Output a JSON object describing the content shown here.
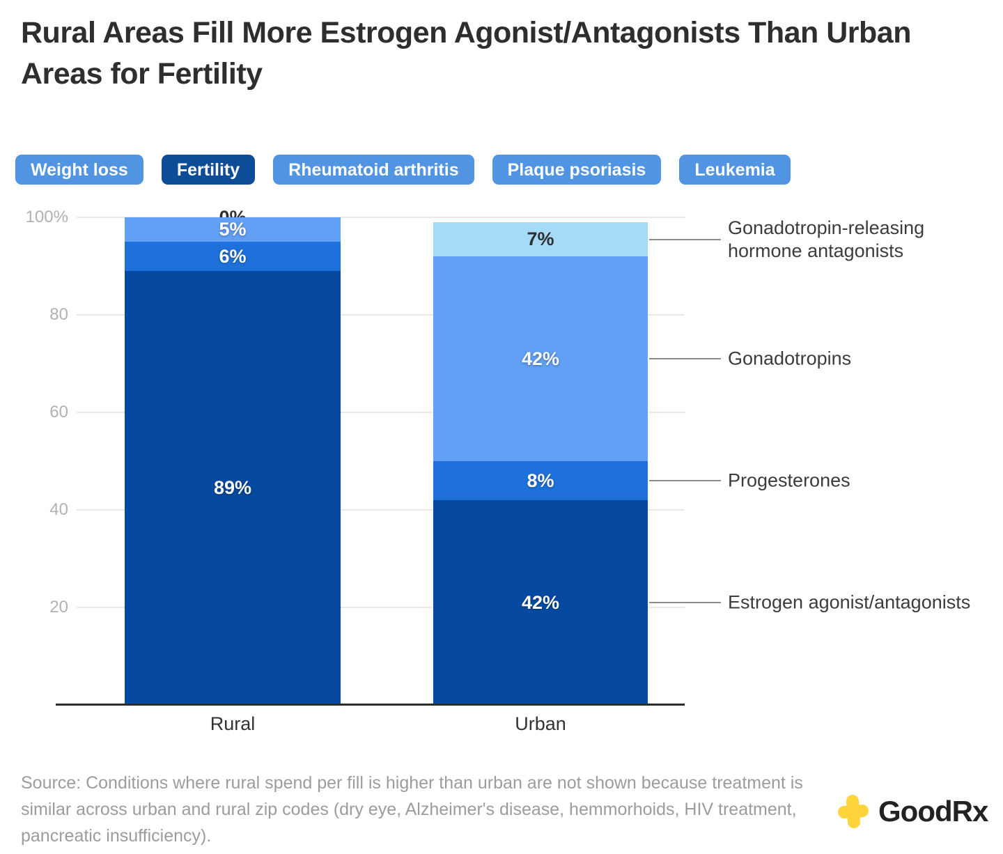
{
  "title": "Rural Areas Fill More Estrogen Agonist/Antagonists Than Urban Areas for Fertility",
  "tabs": {
    "items": [
      {
        "label": "Weight loss",
        "active": false
      },
      {
        "label": "Fertility",
        "active": true
      },
      {
        "label": "Rheumatoid arthritis",
        "active": false
      },
      {
        "label": "Plaque psoriasis",
        "active": false
      },
      {
        "label": "Leukemia",
        "active": false
      }
    ]
  },
  "chart_data": {
    "type": "bar",
    "stacked": true,
    "categories": [
      "Rural",
      "Urban"
    ],
    "series": [
      {
        "name": "Gonadotropin-releasing hormone antagonists",
        "label_lines": [
          "Gonadotropin-releasing",
          "hormone antagonists"
        ],
        "color": "#A6DBF8",
        "values": [
          0,
          7
        ],
        "label_color": "dark"
      },
      {
        "name": "Gonadotropins",
        "color": "#61A0F4",
        "values": [
          5,
          42
        ],
        "label_color": "light"
      },
      {
        "name": "Progesterones",
        "color": "#1E71DA",
        "values": [
          6,
          8
        ],
        "label_color": "light"
      },
      {
        "name": "Estrogen agonist/antagonists",
        "color": "#0649A0",
        "values": [
          89,
          42
        ],
        "label_color": "light"
      }
    ],
    "yticks": [
      {
        "label": "100%",
        "value": 100
      },
      {
        "label": "80",
        "value": 80
      },
      {
        "label": "60",
        "value": 60
      },
      {
        "label": "40",
        "value": 40
      },
      {
        "label": "20",
        "value": 20
      }
    ],
    "ylim": [
      0,
      100
    ],
    "value_suffix": "%",
    "grid": true,
    "legend_position": "right-callouts"
  },
  "source_note": "Source: Conditions where rural spend per fill is higher than urban are not shown because treatment is similar across urban and rural zip codes (dry eye, Alzheimer's disease, hemmorhoids, HIV treatment, pancreatic insufficiency).",
  "logo": {
    "text": "GoodRx",
    "plus_color": "#FFD43B"
  }
}
